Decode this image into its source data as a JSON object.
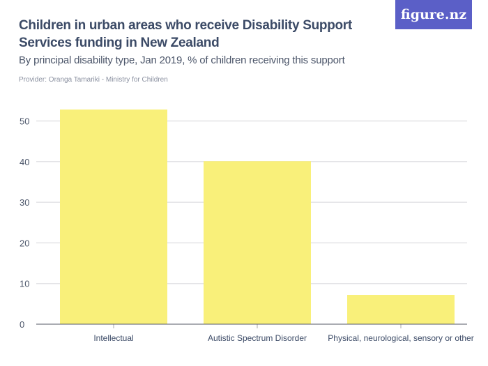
{
  "title": "Children in urban areas who receive Disability Support Services funding in New Zealand",
  "subtitle": "By principal disability type, Jan 2019, % of children receiving this support",
  "provider": "Provider: Oranga Tamariki - Ministry for Children",
  "logo": "figure.nz",
  "colors": {
    "bar": "#f9f07a",
    "grid": "#e3e3e6",
    "brand": "#5b5fc7"
  },
  "chart_data": {
    "type": "bar",
    "categories": [
      "Intellectual",
      "Autistic Spectrum Disorder",
      "Physical, neurological, sensory or other"
    ],
    "values": [
      52.8,
      40.1,
      7.2
    ],
    "title": "Children in urban areas who receive Disability Support Services funding in New Zealand",
    "xlabel": "",
    "ylabel": "",
    "ylim": [
      0,
      55
    ],
    "yticks": [
      0,
      10,
      20,
      30,
      40,
      50
    ],
    "grid": true
  }
}
